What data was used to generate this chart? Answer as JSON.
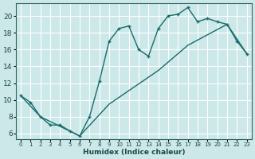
{
  "xlabel": "Humidex (Indice chaleur)",
  "bg_color": "#cce8e8",
  "line_color": "#1a6b6b",
  "grid_color": "#ffffff",
  "xlim": [
    -0.5,
    23.5
  ],
  "ylim": [
    5.3,
    21.5
  ],
  "xticks": [
    0,
    1,
    2,
    3,
    4,
    5,
    6,
    7,
    8,
    9,
    10,
    11,
    12,
    13,
    14,
    15,
    16,
    17,
    18,
    19,
    20,
    21,
    22,
    23
  ],
  "yticks": [
    6,
    8,
    10,
    12,
    14,
    16,
    18,
    20
  ],
  "line1_x": [
    0,
    1,
    2,
    3,
    4,
    5,
    6,
    7,
    8,
    9,
    10,
    11,
    12,
    13,
    14,
    15,
    16,
    17,
    18,
    19,
    20,
    21,
    22,
    23
  ],
  "line1_y": [
    10.5,
    9.7,
    8.0,
    7.0,
    7.0,
    6.3,
    5.7,
    8.0,
    12.2,
    17.0,
    18.5,
    18.8,
    16.0,
    15.2,
    18.5,
    20.0,
    20.2,
    21.0,
    19.3,
    19.7,
    19.3,
    19.0,
    17.0,
    15.5
  ],
  "line2_x": [
    0,
    2,
    6,
    9,
    14,
    17,
    21,
    23
  ],
  "line2_y": [
    10.5,
    8.0,
    5.7,
    9.5,
    13.5,
    16.5,
    19.0,
    15.5
  ]
}
